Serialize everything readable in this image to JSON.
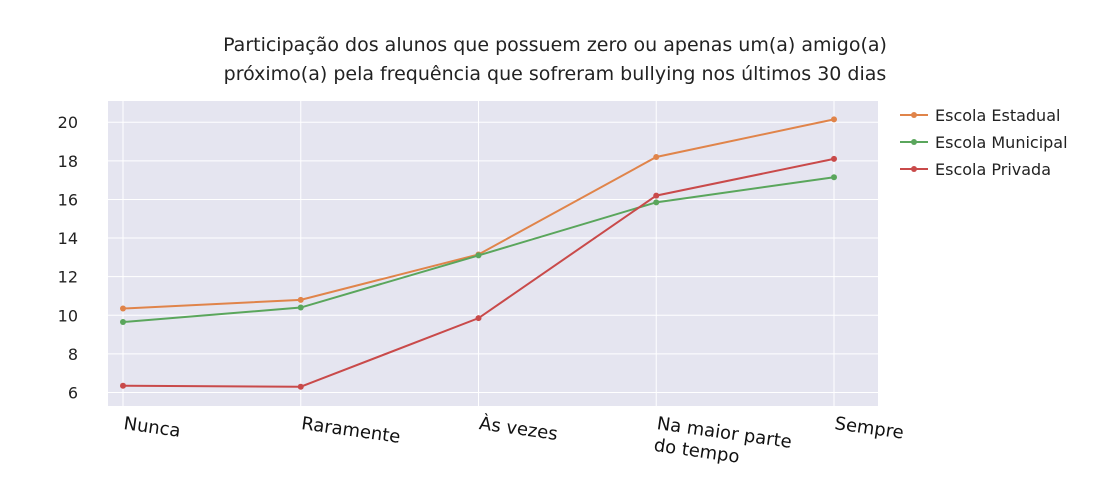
{
  "chart_data": {
    "type": "line",
    "title_lines": [
      "Participação dos alunos que possuem zero ou apenas um(a) amigo(a)",
      "próximo(a) pela frequência que sofreram bullying nos últimos 30 dias"
    ],
    "categories": [
      [
        "Nunca"
      ],
      [
        "Raramente"
      ],
      [
        "Às vezes"
      ],
      [
        "Na maior parte",
        "do tempo"
      ],
      [
        "Sempre"
      ]
    ],
    "yticks": [
      6,
      8,
      10,
      12,
      14,
      16,
      18,
      20
    ],
    "ylim": [
      5.3,
      21.1
    ],
    "grid": true,
    "legend_position": "top-right",
    "series": [
      {
        "name": "Escola Estadual",
        "color": "#e0844a",
        "values": [
          10.35,
          10.8,
          13.15,
          18.2,
          20.15
        ]
      },
      {
        "name": "Escola Municipal",
        "color": "#5aa65c",
        "values": [
          9.65,
          10.4,
          13.1,
          15.85,
          17.15
        ]
      },
      {
        "name": "Escola Privada",
        "color": "#c94a4a",
        "values": [
          6.35,
          6.3,
          9.85,
          16.2,
          18.1
        ]
      }
    ]
  }
}
